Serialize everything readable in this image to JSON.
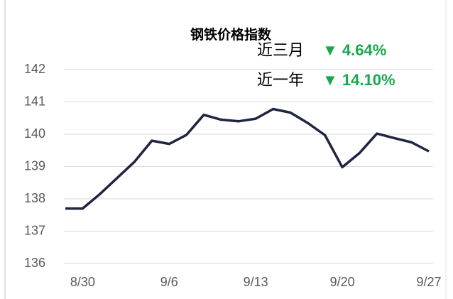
{
  "chart_data": {
    "type": "line",
    "title": "钢铁价格指数",
    "annotations": [
      {
        "label": "近三月",
        "change": "▼ 4.64%"
      },
      {
        "label": "近一年",
        "change": "▼ 14.10%"
      }
    ],
    "categories": [
      null,
      "8/30",
      null,
      null,
      null,
      null,
      "9/6",
      null,
      null,
      null,
      null,
      "9/13",
      null,
      null,
      null,
      null,
      "9/20",
      null,
      null,
      null,
      null,
      "9/27"
    ],
    "series": [
      {
        "name": "钢铁价格指数",
        "color": "#1f2540",
        "values": [
          137.7,
          137.7,
          138.15,
          138.65,
          139.15,
          139.8,
          139.7,
          139.98,
          140.6,
          140.45,
          140.4,
          140.48,
          140.78,
          140.67,
          140.35,
          139.97,
          138.98,
          139.42,
          140.02,
          139.88,
          139.75,
          139.47
        ]
      }
    ],
    "ylim": [
      136,
      142
    ],
    "yticks": [
      136,
      137,
      138,
      139,
      140,
      141,
      142
    ],
    "grid": true
  }
}
